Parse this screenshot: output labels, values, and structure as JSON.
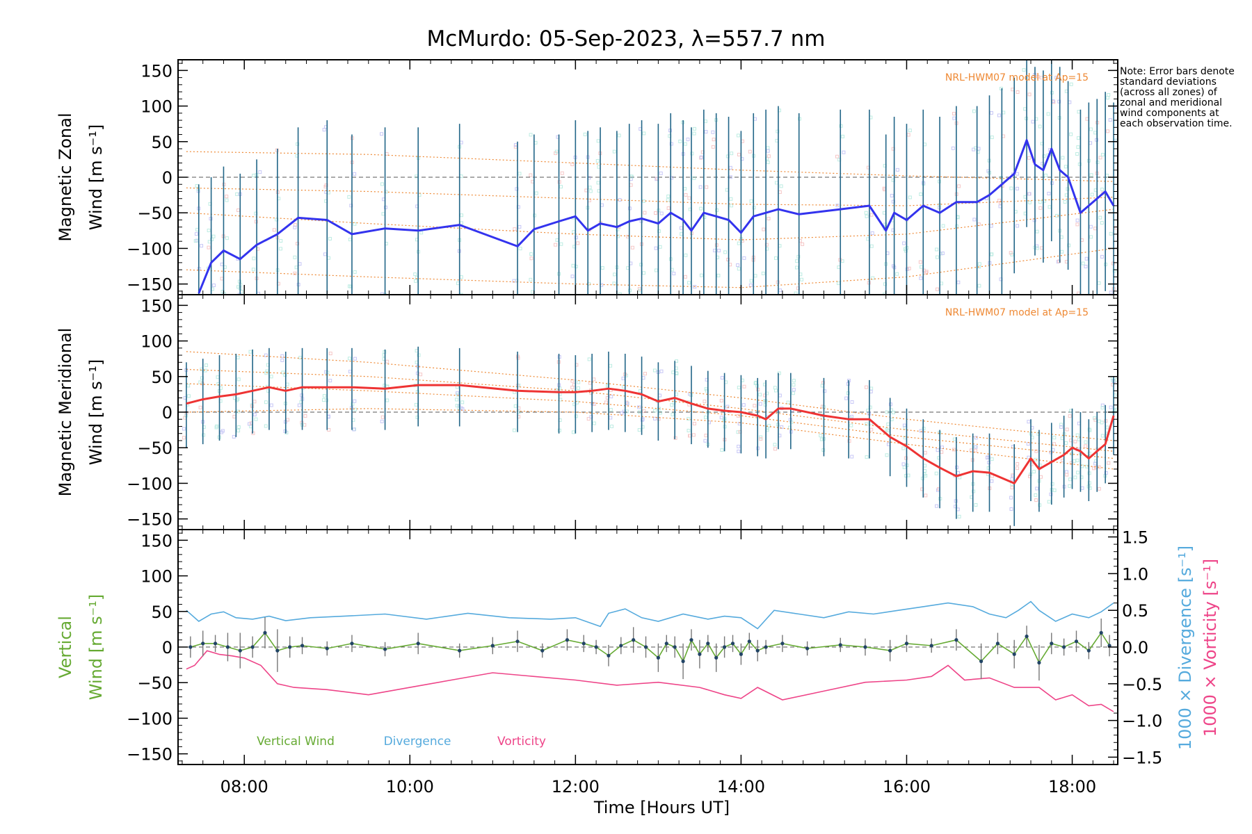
{
  "title": "McMurdo: 05-Sep-2023, λ=557.7 nm",
  "note": "Note: Error bars denote standard deviations (across all zones) of zonal and meridional wind components at each observation time.",
  "colors": {
    "zonal": "#3333ee",
    "meridional": "#ee3333",
    "vertical": "#66aa33",
    "divergence": "#55aadd",
    "vorticity": "#ee4488",
    "model": "#ee8833",
    "errbar": "#226688",
    "scatter": "#88ddcc"
  },
  "chart_data": [
    {
      "type": "line",
      "id": "zonal",
      "ylabel_line1": "Magnetic Zonal",
      "ylabel_line2": "Wind [m s⁻¹]",
      "annotation": "NRL-HWM07 model at Ap=15",
      "ylim": [
        -165,
        165
      ],
      "yticks": [
        -150,
        -100,
        -50,
        0,
        50,
        100,
        150
      ],
      "x": [
        7.45,
        7.6,
        7.75,
        7.95,
        8.15,
        8.4,
        8.65,
        9.0,
        9.3,
        9.7,
        10.1,
        10.6,
        11.3,
        11.5,
        11.8,
        12.0,
        12.15,
        12.3,
        12.5,
        12.65,
        12.8,
        13.0,
        13.15,
        13.3,
        13.4,
        13.55,
        13.7,
        13.85,
        14.0,
        14.15,
        14.3,
        14.45,
        14.7,
        15.2,
        15.55,
        15.75,
        15.85,
        16.0,
        16.2,
        16.4,
        16.6,
        16.85,
        17.0,
        17.15,
        17.3,
        17.45,
        17.55,
        17.65,
        17.75,
        17.85,
        17.95,
        18.1,
        18.2,
        18.3,
        18.4,
        18.5
      ],
      "y": [
        -163,
        -120,
        -103,
        -115,
        -95,
        -80,
        -57,
        -60,
        -80,
        -72,
        -75,
        -67,
        -97,
        -73,
        -62,
        -55,
        -75,
        -65,
        -70,
        -62,
        -58,
        -65,
        -50,
        -60,
        -75,
        -50,
        -55,
        -60,
        -78,
        -55,
        -50,
        -45,
        -52,
        -45,
        -40,
        -75,
        -50,
        -60,
        -40,
        -50,
        -35,
        -35,
        -25,
        -10,
        5,
        52,
        18,
        10,
        40,
        10,
        0,
        -50,
        -40,
        -30,
        -20,
        -40
      ],
      "error_upper": [
        -10,
        0,
        15,
        5,
        25,
        40,
        70,
        80,
        60,
        70,
        70,
        75,
        50,
        60,
        60,
        80,
        65,
        70,
        65,
        75,
        80,
        75,
        90,
        80,
        70,
        95,
        90,
        85,
        65,
        90,
        95,
        100,
        90,
        95,
        95,
        60,
        85,
        75,
        95,
        85,
        100,
        100,
        115,
        125,
        140,
        165,
        155,
        150,
        165,
        155,
        135,
        95,
        105,
        110,
        120,
        105
      ],
      "error_lower": [
        -165,
        -165,
        -165,
        -165,
        -165,
        -165,
        -165,
        -165,
        -165,
        -165,
        -165,
        -165,
        -165,
        -165,
        -165,
        -165,
        -165,
        -165,
        -165,
        -165,
        -165,
        -165,
        -165,
        -165,
        -165,
        -165,
        -165,
        -165,
        -165,
        -165,
        -165,
        -165,
        -165,
        -165,
        -165,
        -165,
        -165,
        -165,
        -165,
        -165,
        -165,
        -165,
        -165,
        -165,
        -135,
        -70,
        -110,
        -120,
        -90,
        -120,
        -130,
        -165,
        -165,
        -165,
        -160,
        -165
      ],
      "model_curves": [
        [
          [
            7.3,
            36
          ],
          [
            9.5,
            32
          ],
          [
            12.0,
            20
          ],
          [
            14.0,
            10
          ],
          [
            16.0,
            2
          ],
          [
            18.5,
            -6
          ]
        ],
        [
          [
            7.3,
            -15
          ],
          [
            9.5,
            -20
          ],
          [
            12.0,
            -30
          ],
          [
            14.0,
            -38
          ],
          [
            16.0,
            -40
          ],
          [
            18.5,
            -28
          ]
        ],
        [
          [
            7.3,
            -50
          ],
          [
            9.5,
            -65
          ],
          [
            12.0,
            -80
          ],
          [
            14.0,
            -88
          ],
          [
            16.0,
            -80
          ],
          [
            18.5,
            -45
          ]
        ],
        [
          [
            7.3,
            -130
          ],
          [
            9.5,
            -140
          ],
          [
            12.0,
            -150
          ],
          [
            14.0,
            -155
          ],
          [
            16.0,
            -140
          ],
          [
            18.5,
            -100
          ]
        ]
      ]
    },
    {
      "type": "line",
      "id": "meridional",
      "ylabel_line1": "Magnetic Meridional",
      "ylabel_line2": "Wind [m s⁻¹]",
      "annotation": "NRL-HWM07 model at Ap=15",
      "ylim": [
        -165,
        165
      ],
      "yticks": [
        -150,
        -100,
        -50,
        0,
        50,
        100,
        150
      ],
      "x": [
        7.3,
        7.5,
        7.7,
        7.9,
        8.1,
        8.3,
        8.5,
        8.7,
        9.0,
        9.3,
        9.7,
        10.1,
        10.6,
        11.3,
        11.8,
        12.0,
        12.2,
        12.4,
        12.6,
        12.8,
        13.0,
        13.2,
        13.4,
        13.6,
        13.8,
        14.0,
        14.2,
        14.3,
        14.45,
        14.6,
        15.0,
        15.3,
        15.55,
        15.8,
        16.0,
        16.2,
        16.4,
        16.6,
        16.8,
        17.0,
        17.3,
        17.5,
        17.6,
        17.75,
        17.9,
        18.0,
        18.1,
        18.2,
        18.3,
        18.4,
        18.5
      ],
      "y": [
        12,
        18,
        22,
        25,
        30,
        35,
        30,
        35,
        35,
        35,
        33,
        38,
        38,
        30,
        28,
        28,
        30,
        33,
        30,
        25,
        15,
        20,
        12,
        5,
        2,
        0,
        -5,
        -10,
        5,
        5,
        -5,
        -10,
        -10,
        -35,
        -48,
        -65,
        -78,
        -90,
        -83,
        -85,
        -100,
        -65,
        -80,
        -70,
        -60,
        -50,
        -55,
        -65,
        -55,
        -45,
        -5
      ],
      "error_upper": [
        70,
        75,
        80,
        82,
        88,
        90,
        85,
        90,
        90,
        90,
        88,
        92,
        90,
        85,
        82,
        80,
        82,
        85,
        82,
        78,
        70,
        72,
        65,
        58,
        55,
        52,
        48,
        45,
        55,
        55,
        48,
        45,
        45,
        20,
        5,
        -10,
        -25,
        -35,
        -30,
        -30,
        -45,
        -10,
        -25,
        -15,
        -5,
        5,
        0,
        -10,
        0,
        10,
        50
      ],
      "error_lower": [
        -50,
        -45,
        -40,
        -35,
        -30,
        -25,
        -30,
        -25,
        -25,
        -25,
        -25,
        -20,
        -20,
        -28,
        -30,
        -30,
        -28,
        -25,
        -28,
        -32,
        -40,
        -38,
        -45,
        -50,
        -55,
        -58,
        -62,
        -65,
        -52,
        -52,
        -62,
        -65,
        -65,
        -90,
        -105,
        -120,
        -135,
        -150,
        -140,
        -140,
        -160,
        -125,
        -140,
        -130,
        -120,
        -108,
        -112,
        -125,
        -112,
        -100,
        -60
      ],
      "model_curves": [
        [
          [
            7.3,
            85
          ],
          [
            9.5,
            70
          ],
          [
            12.0,
            45
          ],
          [
            14.0,
            20
          ],
          [
            16.0,
            -10
          ],
          [
            18.5,
            -40
          ]
        ],
        [
          [
            7.3,
            60
          ],
          [
            9.5,
            50
          ],
          [
            12.0,
            30
          ],
          [
            14.0,
            5
          ],
          [
            16.0,
            -25
          ],
          [
            18.5,
            -55
          ]
        ],
        [
          [
            7.3,
            40
          ],
          [
            9.5,
            30
          ],
          [
            12.0,
            15
          ],
          [
            14.0,
            -5
          ],
          [
            16.0,
            -35
          ],
          [
            18.5,
            -65
          ]
        ],
        [
          [
            7.3,
            0
          ],
          [
            9.5,
            5
          ],
          [
            12.0,
            0
          ],
          [
            14.0,
            -15
          ],
          [
            16.0,
            -45
          ],
          [
            18.5,
            -80
          ]
        ]
      ]
    },
    {
      "type": "line",
      "id": "vertical",
      "ylabel_line1": "Vertical",
      "ylabel_line2": "Wind [m s⁻¹]",
      "right_label_outer": "1000 × Vorticity [s⁻¹]",
      "right_label_inner": "1000 × Divergence [s⁻¹]",
      "ylim": [
        -165,
        165
      ],
      "yticks": [
        -150,
        -100,
        -50,
        0,
        50,
        100,
        150
      ],
      "right_ylim": [
        -1.6,
        1.6
      ],
      "right_yticks": [
        -1.5,
        -1.0,
        -0.5,
        0.0,
        0.5,
        1.0,
        1.5
      ],
      "right_yticklabels": [
        "−1.5",
        "−1.0",
        "−0.5",
        "0.0",
        "0.5",
        "1.0",
        "1.5"
      ],
      "legend": [
        "Vertical Wind",
        "Divergence",
        "Vorticity"
      ],
      "vertical_x": [
        7.35,
        7.5,
        7.65,
        7.8,
        7.95,
        8.1,
        8.25,
        8.4,
        8.55,
        8.7,
        9.0,
        9.3,
        9.7,
        10.1,
        10.6,
        11.0,
        11.3,
        11.6,
        11.9,
        12.1,
        12.25,
        12.4,
        12.55,
        12.7,
        12.85,
        13.0,
        13.1,
        13.2,
        13.3,
        13.4,
        13.5,
        13.6,
        13.7,
        13.8,
        13.9,
        14.0,
        14.1,
        14.2,
        14.3,
        14.5,
        14.8,
        15.2,
        15.5,
        15.8,
        16.0,
        16.3,
        16.6,
        16.9,
        17.1,
        17.3,
        17.45,
        17.6,
        17.75,
        17.9,
        18.05,
        18.2,
        18.35,
        18.45
      ],
      "vertical_y": [
        0,
        5,
        5,
        0,
        -5,
        0,
        20,
        -5,
        0,
        2,
        -2,
        5,
        -3,
        5,
        -5,
        2,
        8,
        -5,
        10,
        5,
        0,
        -12,
        2,
        10,
        0,
        -15,
        5,
        0,
        -20,
        10,
        -10,
        5,
        -15,
        0,
        5,
        -10,
        8,
        -5,
        0,
        5,
        -2,
        3,
        0,
        -5,
        5,
        2,
        10,
        -20,
        5,
        -10,
        15,
        -22,
        5,
        0,
        8,
        -5,
        20,
        2
      ],
      "vertical_err": [
        15,
        18,
        12,
        20,
        25,
        15,
        22,
        30,
        15,
        12,
        10,
        12,
        10,
        15,
        10,
        12,
        15,
        10,
        15,
        12,
        10,
        15,
        12,
        18,
        15,
        20,
        12,
        15,
        25,
        15,
        20,
        12,
        20,
        15,
        12,
        15,
        12,
        15,
        10,
        12,
        10,
        10,
        12,
        15,
        12,
        10,
        15,
        25,
        15,
        20,
        15,
        25,
        15,
        12,
        15,
        12,
        20,
        15
      ],
      "div_x": [
        7.3,
        7.45,
        7.6,
        7.75,
        7.9,
        8.1,
        8.3,
        8.5,
        8.8,
        9.2,
        9.7,
        10.2,
        10.7,
        11.2,
        11.7,
        12.0,
        12.3,
        12.4,
        12.6,
        12.8,
        13.0,
        13.3,
        13.6,
        13.8,
        14.0,
        14.2,
        14.4,
        14.7,
        15.0,
        15.3,
        15.6,
        15.9,
        16.2,
        16.5,
        16.8,
        17.0,
        17.2,
        17.35,
        17.5,
        17.6,
        17.8,
        18.0,
        18.2,
        18.35,
        18.5
      ],
      "div_y": [
        0.5,
        0.35,
        0.45,
        0.48,
        0.4,
        0.38,
        0.42,
        0.36,
        0.4,
        0.42,
        0.45,
        0.38,
        0.46,
        0.4,
        0.38,
        0.4,
        0.28,
        0.46,
        0.52,
        0.4,
        0.35,
        0.45,
        0.38,
        0.42,
        0.4,
        0.25,
        0.5,
        0.45,
        0.4,
        0.48,
        0.45,
        0.5,
        0.55,
        0.6,
        0.55,
        0.45,
        0.4,
        0.5,
        0.62,
        0.5,
        0.35,
        0.45,
        0.4,
        0.48,
        0.6
      ],
      "vort_x": [
        7.3,
        7.4,
        7.55,
        7.7,
        7.85,
        8.0,
        8.2,
        8.4,
        8.6,
        9.0,
        9.5,
        10.0,
        10.5,
        11.0,
        11.5,
        12.0,
        12.5,
        13.0,
        13.5,
        13.8,
        14.0,
        14.2,
        14.5,
        15.0,
        15.5,
        16.0,
        16.3,
        16.5,
        16.7,
        17.0,
        17.3,
        17.6,
        17.8,
        18.0,
        18.2,
        18.35,
        18.5
      ],
      "vort_y": [
        -0.3,
        -0.25,
        -0.05,
        -0.1,
        -0.12,
        -0.15,
        -0.25,
        -0.5,
        -0.55,
        -0.58,
        -0.65,
        -0.55,
        -0.45,
        -0.35,
        -0.4,
        -0.45,
        -0.52,
        -0.48,
        -0.55,
        -0.65,
        -0.7,
        -0.55,
        -0.72,
        -0.6,
        -0.48,
        -0.45,
        -0.4,
        -0.25,
        -0.45,
        -0.42,
        -0.55,
        -0.55,
        -0.72,
        -0.65,
        -0.8,
        -0.78,
        -0.88
      ]
    }
  ],
  "xaxis": {
    "label": "Time [Hours UT]",
    "xlim": [
      7.2,
      18.55
    ],
    "ticks": [
      8,
      10,
      12,
      14,
      16,
      18
    ],
    "ticklabels": [
      "08:00",
      "10:00",
      "12:00",
      "14:00",
      "16:00",
      "18:00"
    ]
  }
}
